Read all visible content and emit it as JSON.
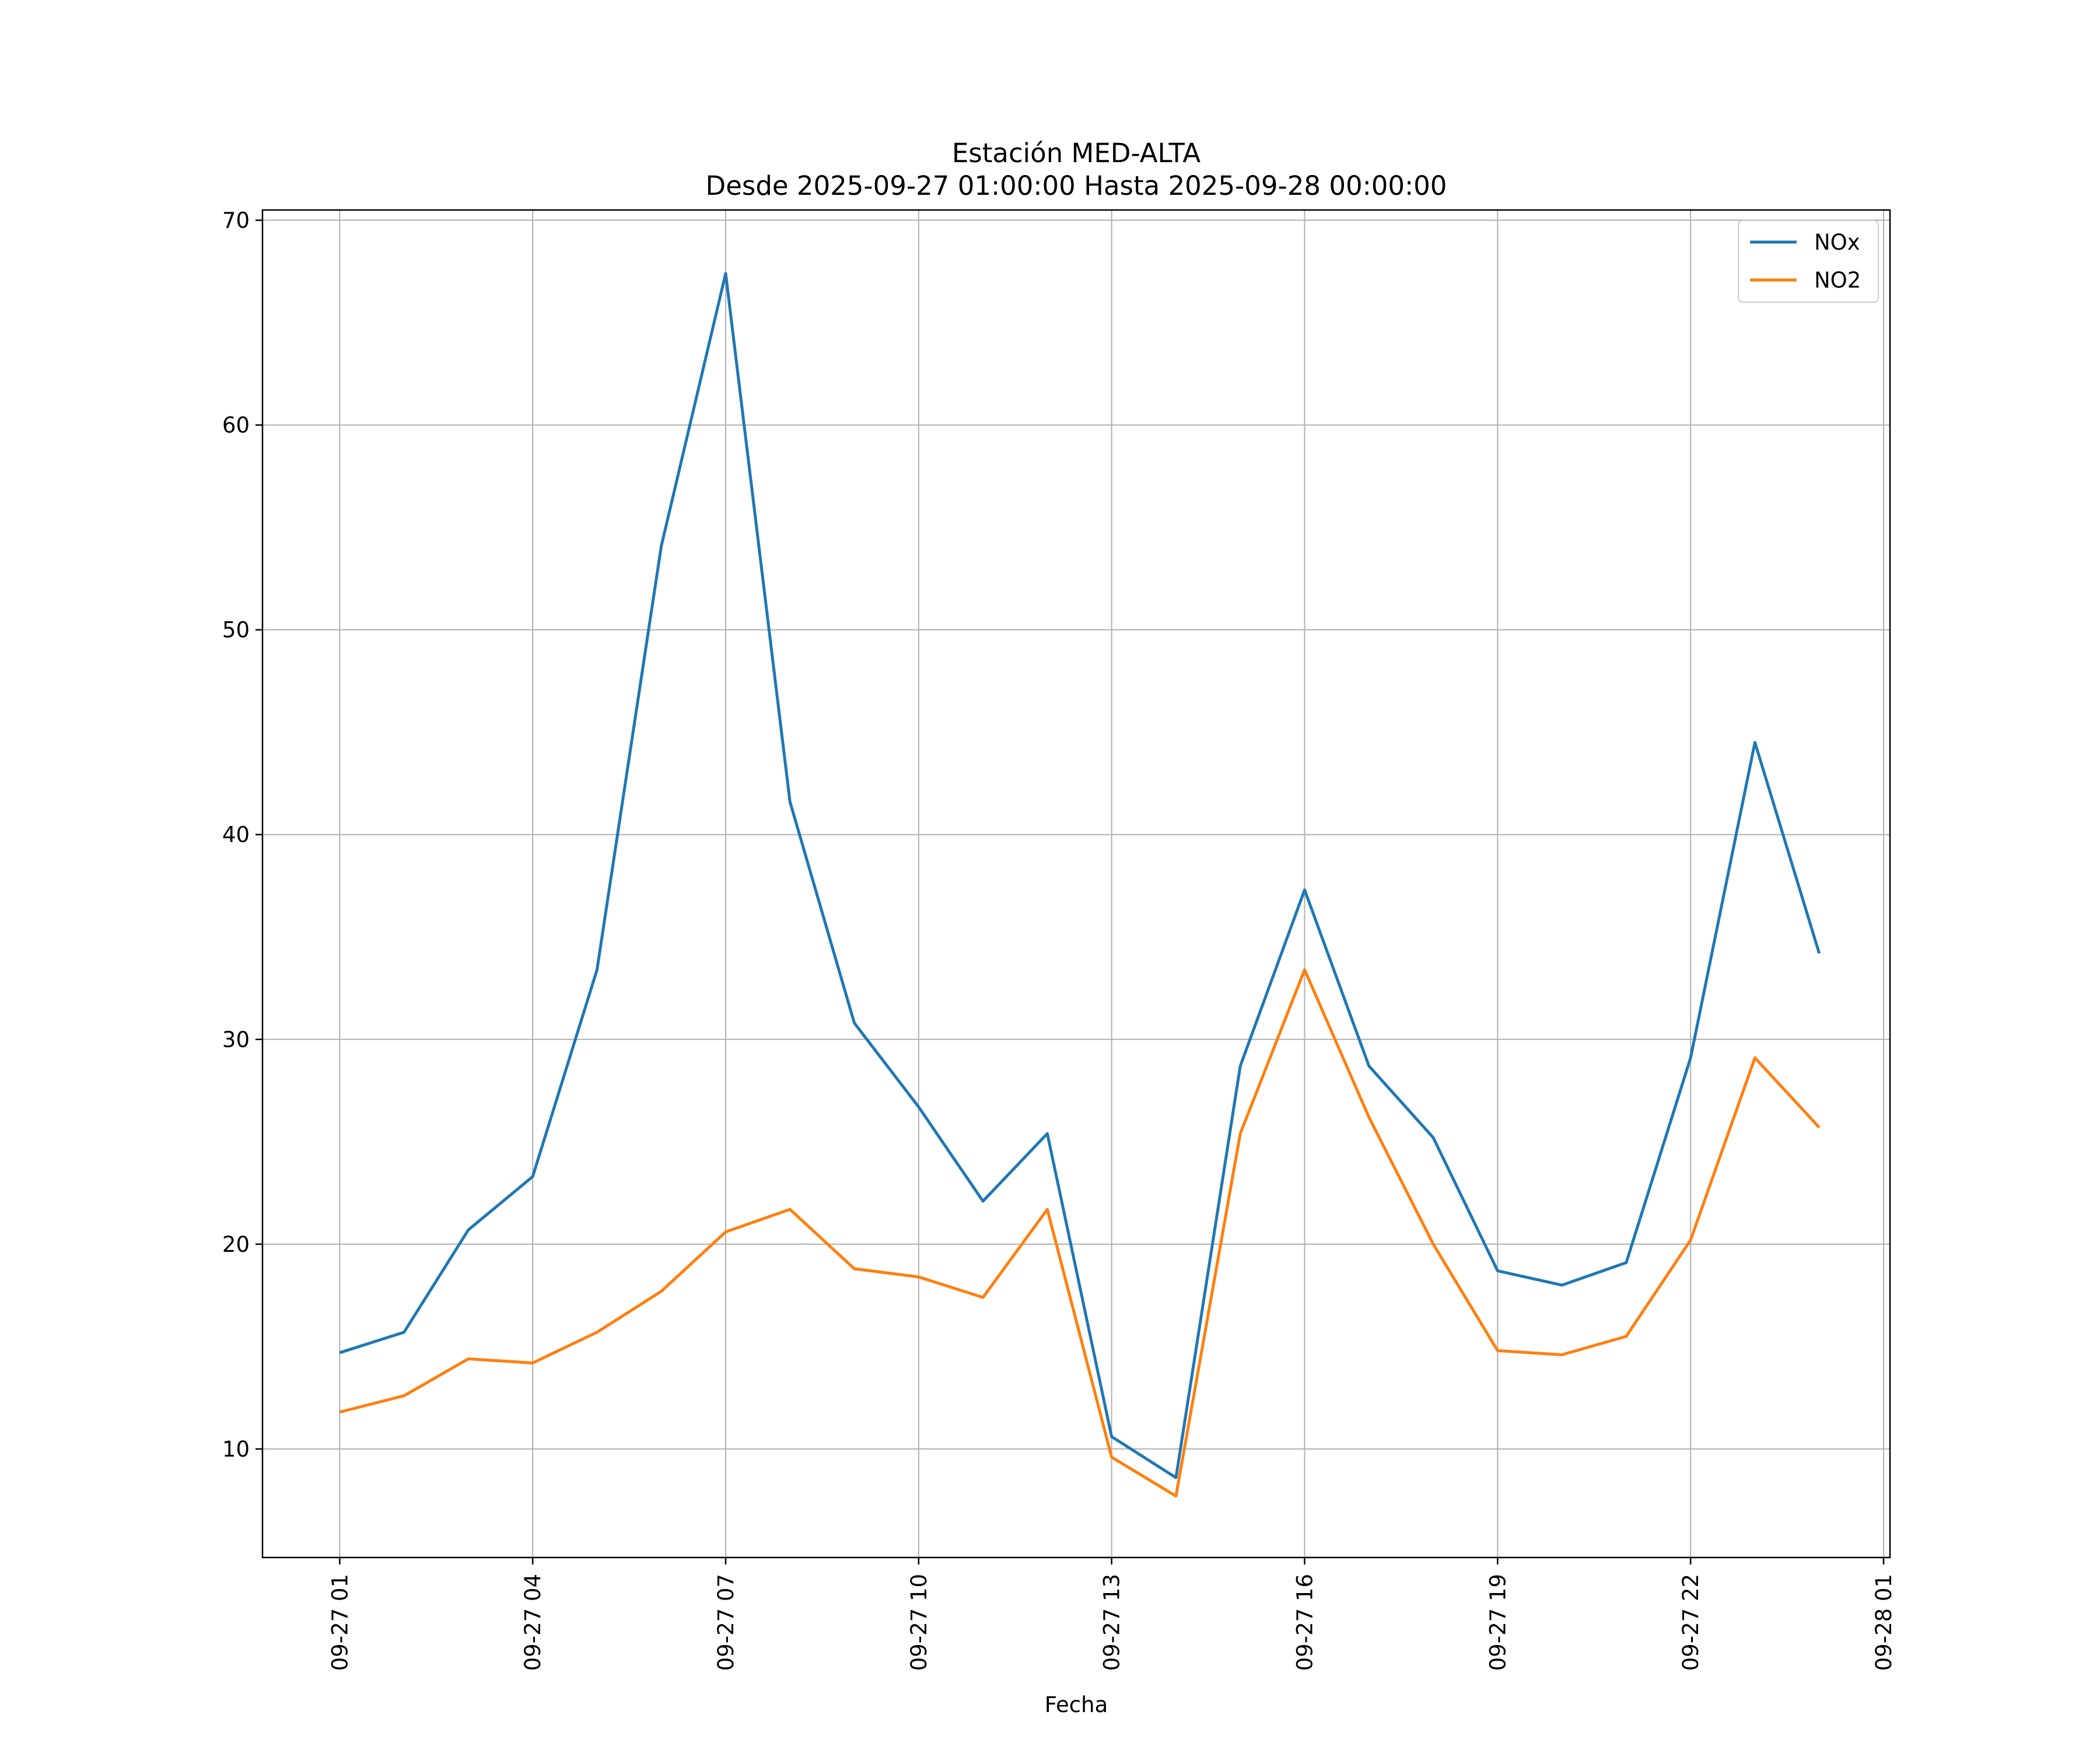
{
  "chart_data": {
    "type": "line",
    "title": "Estación MED-ALTA",
    "subtitle": "Desde 2025-09-27 01:00:00 Hasta 2025-09-28 00:00:00",
    "xlabel": "Fecha",
    "ylabel": "",
    "grid": true,
    "legend_position": "top-right",
    "x_hours": [
      1,
      2,
      3,
      4,
      5,
      6,
      7,
      8,
      9,
      10,
      11,
      12,
      13,
      14,
      15,
      16,
      17,
      18,
      19,
      20,
      21,
      22,
      23,
      24
    ],
    "xlim": [
      -0.2,
      25.1
    ],
    "ylim": [
      4.7,
      70.5
    ],
    "x_ticks": [
      1,
      4,
      7,
      10,
      13,
      16,
      19,
      22,
      25
    ],
    "x_tick_labels": [
      "09-27 01",
      "09-27 04",
      "09-27 07",
      "09-27 10",
      "09-27 13",
      "09-27 16",
      "09-27 19",
      "09-27 22",
      "09-28 01"
    ],
    "y_ticks": [
      10,
      20,
      30,
      40,
      50,
      60,
      70
    ],
    "y_tick_labels": [
      "10",
      "20",
      "30",
      "40",
      "50",
      "60",
      "70"
    ],
    "series": [
      {
        "name": "NOx",
        "color": "#1f77b4",
        "values": [
          14.7,
          15.7,
          20.7,
          23.3,
          33.4,
          54.1,
          67.4,
          41.6,
          30.8,
          26.7,
          22.1,
          25.4,
          10.6,
          8.6,
          28.7,
          37.3,
          28.7,
          25.2,
          18.7,
          18.0,
          19.1,
          29.1,
          44.5,
          34.2
        ]
      },
      {
        "name": "NO2",
        "color": "#ff7f0e",
        "values": [
          11.8,
          12.6,
          14.4,
          14.2,
          15.7,
          17.7,
          20.6,
          21.7,
          18.8,
          18.4,
          17.4,
          21.7,
          9.6,
          7.7,
          25.4,
          33.4,
          26.2,
          20.0,
          14.8,
          14.6,
          15.5,
          20.2,
          29.1,
          25.7
        ]
      }
    ]
  }
}
